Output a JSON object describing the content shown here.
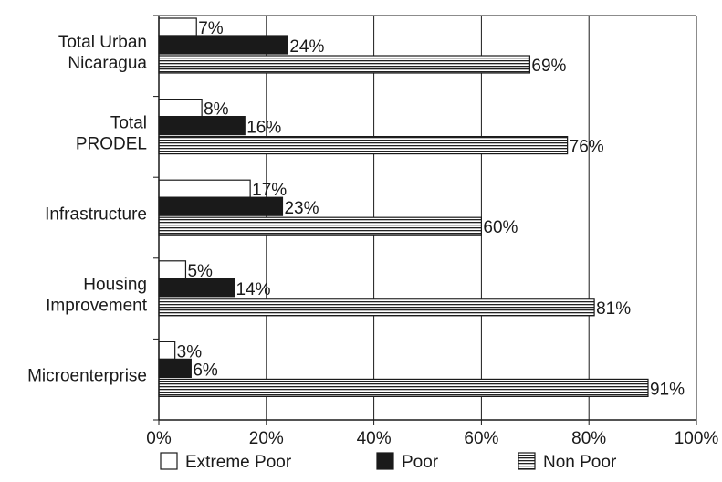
{
  "chart_data": {
    "type": "bar",
    "orientation": "horizontal",
    "title": "",
    "xlabel": "",
    "ylabel": "",
    "xlim": [
      0,
      100
    ],
    "x_ticks": [
      "0%",
      "20%",
      "40%",
      "60%",
      "80%",
      "100%"
    ],
    "grid": "vertical gridlines at each 20%",
    "legend_position": "bottom",
    "categories": [
      [
        "Total Urban",
        "Nicaragua"
      ],
      [
        "Total",
        "PRODEL"
      ],
      [
        "Infrastructure"
      ],
      [
        "Housing",
        "Improvement"
      ],
      [
        "Microenterprise"
      ]
    ],
    "series": [
      {
        "name": "Extreme Poor",
        "fill": "white",
        "values": [
          7,
          8,
          17,
          5,
          3
        ],
        "labels": [
          "7%",
          "8%",
          "17%",
          "5%",
          "3%"
        ]
      },
      {
        "name": "Poor",
        "fill": "black",
        "values": [
          24,
          16,
          23,
          14,
          6
        ],
        "labels": [
          "24%",
          "16%",
          "23%",
          "14%",
          "6%"
        ]
      },
      {
        "name": "Non Poor",
        "fill": "horizontal-stripes",
        "values": [
          69,
          76,
          60,
          81,
          91
        ],
        "labels": [
          "69%",
          "76%",
          "60%",
          "81%",
          "91%"
        ]
      }
    ]
  }
}
